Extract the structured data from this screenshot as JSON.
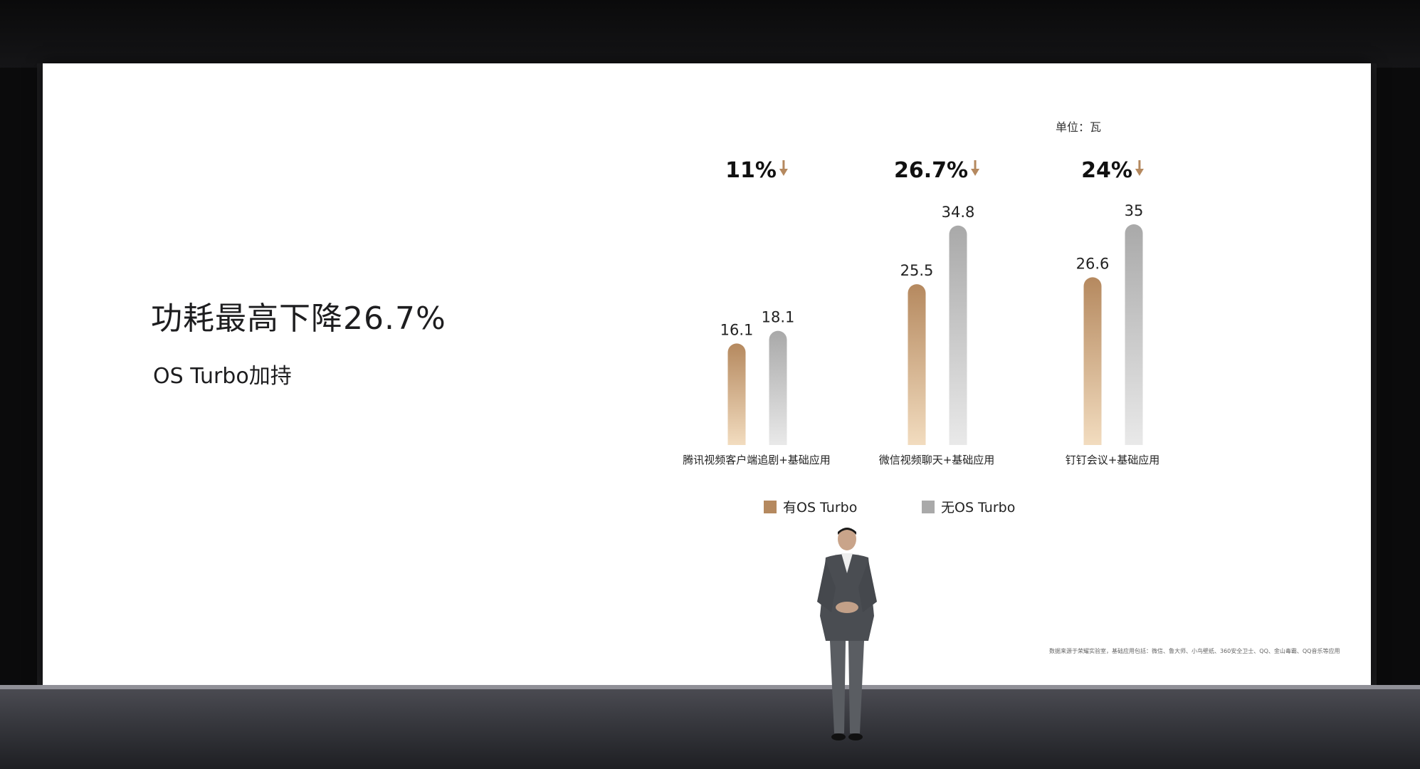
{
  "slide": {
    "headline": "功耗最高下降26.7%",
    "subline": "OS Turbo加持",
    "unit_label": "单位：瓦",
    "footnote": "数据来源于荣耀实验室，基础应用包括：微信、鲁大师、小鸟壁纸、360安全卫士、QQ、金山毒霸、QQ音乐等应用"
  },
  "colors": {
    "with_turbo": "#b5895f",
    "with_turbo_light": "#f2dcbf",
    "without_turbo": "#a9a9a9",
    "without_turbo_light": "#e9e9e9",
    "down_arrow": "#b5895f"
  },
  "chart_data": {
    "type": "bar",
    "title": "",
    "xlabel": "",
    "ylabel": "",
    "unit": "单位：瓦",
    "ylim": [
      0,
      35
    ],
    "grid": false,
    "legend_position": "bottom",
    "categories": [
      "腾讯视频客户端追剧+基础应用",
      "微信视频聊天+基础应用",
      "钉钉会议+基础应用"
    ],
    "series": [
      {
        "name": "有OS Turbo",
        "values": [
          16.1,
          25.5,
          26.6
        ]
      },
      {
        "name": "无OS Turbo",
        "values": [
          18.1,
          34.8,
          35
        ]
      }
    ],
    "value_labels": [
      [
        "16.1",
        "25.5",
        "26.6"
      ],
      [
        "18.1",
        "34.8",
        "35"
      ]
    ],
    "reduction_labels": [
      "11%",
      "26.7%",
      "24%"
    ]
  }
}
